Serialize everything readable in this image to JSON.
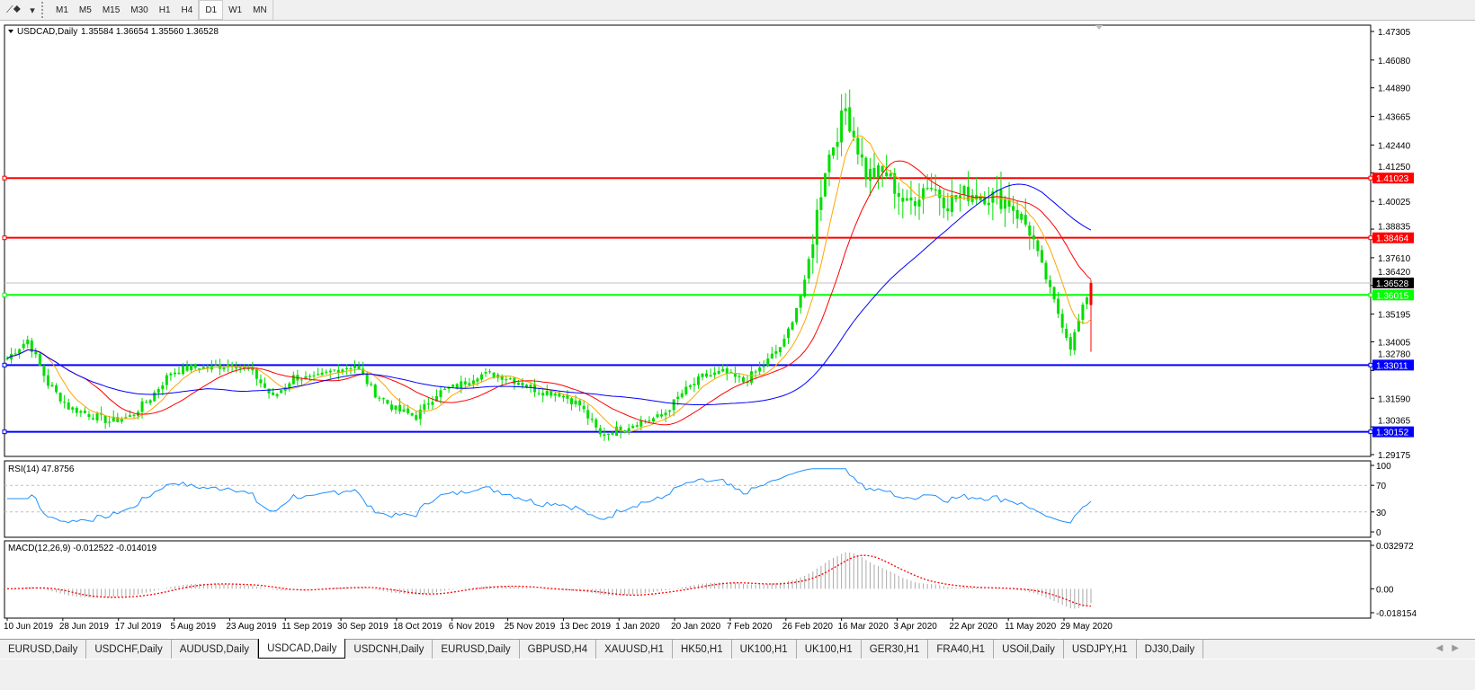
{
  "toolbar": {
    "timeframes": [
      "M1",
      "M5",
      "M15",
      "M30",
      "H1",
      "H4",
      "D1",
      "W1",
      "MN"
    ],
    "active_timeframe": "D1"
  },
  "chart": {
    "symbol_label": "USDCAD,Daily",
    "ohlc_label": "1.35584 1.36654 1.35560 1.36528",
    "price_ticks": [
      "1.47305",
      "1.46080",
      "1.44890",
      "1.43665",
      "1.42440",
      "1.41250",
      "1.40025",
      "1.38835",
      "1.37610",
      "1.36420",
      "1.35195",
      "1.34005",
      "1.32780",
      "1.31590",
      "1.30365",
      "1.29175"
    ],
    "price_range": [
      1.29175,
      1.47305
    ],
    "current_price": "1.36528",
    "levels": [
      {
        "price": "1.41023",
        "color": "#ff0000"
      },
      {
        "price": "1.38464",
        "color": "#ff0000"
      },
      {
        "price": "1.36015",
        "color": "#00ff00"
      },
      {
        "price": "1.33011",
        "color": "#0000ff"
      },
      {
        "price": "1.30152",
        "color": "#0000ff"
      }
    ],
    "date_labels": [
      "10 Jun 2019",
      "28 Jun 2019",
      "17 Jul 2019",
      "5 Aug 2019",
      "23 Aug 2019",
      "11 Sep 2019",
      "30 Sep 2019",
      "18 Oct 2019",
      "6 Nov 2019",
      "25 Nov 2019",
      "13 Dec 2019",
      "1 Jan 2020",
      "20 Jan 2020",
      "7 Feb 2020",
      "26 Feb 2020",
      "16 Mar 2020",
      "3 Apr 2020",
      "22 Apr 2020",
      "11 May 2020",
      "29 May 2020"
    ],
    "weekly_closes": [
      1.333,
      1.341,
      1.322,
      1.312,
      1.309,
      1.306,
      1.308,
      1.316,
      1.327,
      1.329,
      1.329,
      1.331,
      1.327,
      1.316,
      1.325,
      1.324,
      1.328,
      1.33,
      1.318,
      1.311,
      1.308,
      1.318,
      1.321,
      1.326,
      1.326,
      1.323,
      1.319,
      1.318,
      1.313,
      1.3,
      1.303,
      1.306,
      1.308,
      1.318,
      1.325,
      1.327,
      1.323,
      1.33,
      1.34,
      1.365,
      1.415,
      1.44,
      1.412,
      1.412,
      1.398,
      1.408,
      1.4,
      1.404,
      1.403,
      1.4,
      1.388,
      1.362,
      1.338,
      1.36528
    ],
    "candle_color": "#00dd00",
    "last_candle_color": "#ff0000",
    "ma_colors": {
      "fast": "#ffa500",
      "medium": "#ff0000",
      "slow": "#0000ff"
    }
  },
  "rsi": {
    "label": "RSI(14) 47.8756",
    "ticks": [
      "100",
      "70",
      "30",
      "0"
    ],
    "line_color": "#1e90ff"
  },
  "macd": {
    "label": "MACD(12,26,9) -0.012522 -0.014019",
    "ticks": [
      "0.032972",
      "0.00",
      "-0.018154"
    ],
    "range": [
      -0.018154,
      0.032972
    ]
  },
  "tabs": [
    "EURUSD,Daily",
    "USDCHF,Daily",
    "AUDUSD,Daily",
    "USDCAD,Daily",
    "USDCNH,Daily",
    "EURUSD,Daily",
    "GBPUSD,H4",
    "XAUUSD,H1",
    "HK50,H1",
    "UK100,H1",
    "UK100,H1",
    "GER30,H1",
    "FRA40,H1",
    "USOil,Daily",
    "USDJPY,H1",
    "DJ30,Daily"
  ],
  "active_tab": "USDCAD,Daily"
}
